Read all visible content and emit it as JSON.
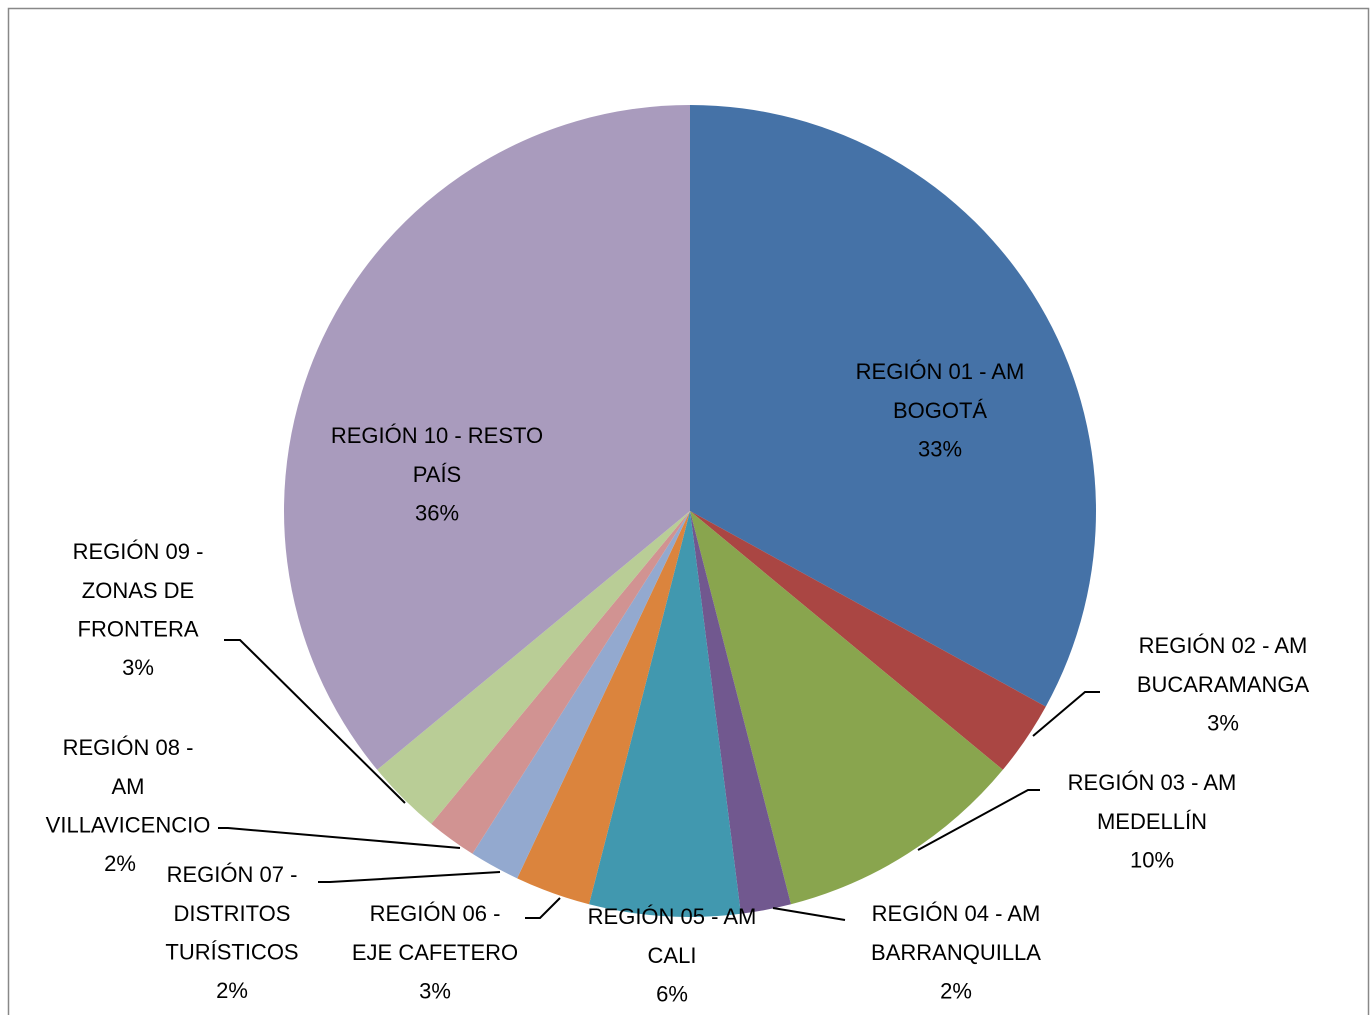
{
  "chart_data": {
    "type": "pie",
    "categories": [
      "REGIÓN 01 - AM BOGOTÁ",
      "REGIÓN 02 - AM BUCARAMANGA",
      "REGIÓN 03 - AM MEDELLÍN",
      "REGIÓN 04 - AM BARRANQUILLA",
      "REGIÓN 05 - AM CALI",
      "REGIÓN 06 - EJE CAFETERO",
      "REGIÓN 07 - DISTRITOS TURÍSTICOS",
      "REGIÓN 08 - AM VILLAVICENCIO",
      "REGIÓN 09 - ZONAS DE FRONTERA",
      "REGIÓN 10 - RESTO PAÍS"
    ],
    "values": [
      33,
      3,
      10,
      2,
      6,
      3,
      2,
      2,
      3,
      36
    ],
    "value_labels": [
      "33%",
      "3%",
      "10%",
      "2%",
      "6%",
      "3%",
      "2%",
      "2%",
      "3%",
      "36%"
    ],
    "colors": [
      "#4572a7",
      "#aa4643",
      "#89a54e",
      "#71588f",
      "#4198af",
      "#db843d",
      "#93a9cf",
      "#d19392",
      "#b9cd96",
      "#a99bbd"
    ]
  }
}
